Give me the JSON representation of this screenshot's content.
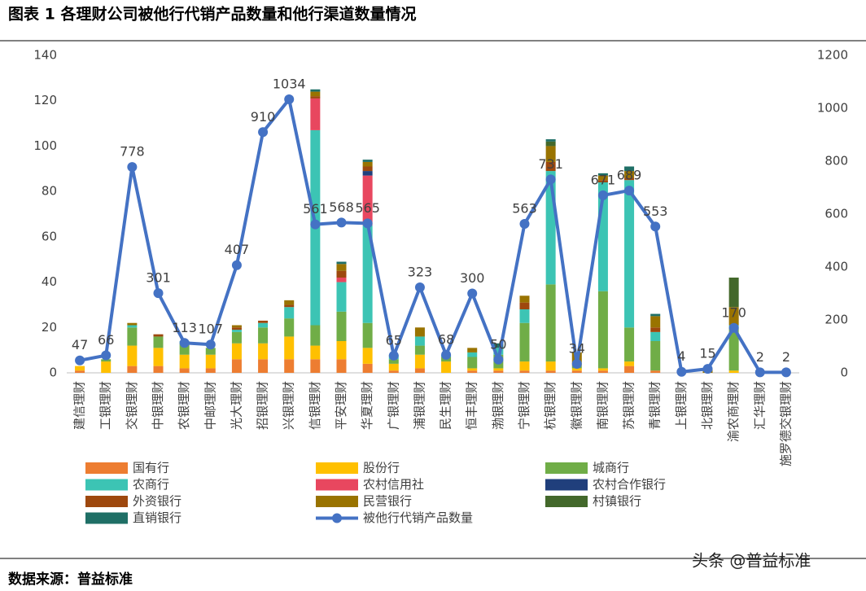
{
  "chart_data": {
    "type": "bar_line",
    "title": "图表 1  各理财公司被他行代销产品数量和他行渠道数量情况",
    "source": "数据来源：普益标准",
    "watermark": "头条 @普益标准",
    "categories": [
      "建信理财",
      "工银理财",
      "交银理财",
      "中银理财",
      "农银理财",
      "中邮理财",
      "光大理财",
      "招银理财",
      "兴银理财",
      "信银理财",
      "平安理财",
      "华夏理财",
      "广银理财",
      "浦银理财",
      "民生理财",
      "恒丰理财",
      "渤银理财",
      "宁银理财",
      "杭银理财",
      "徽银理财",
      "南银理财",
      "苏银理财",
      "青银理财",
      "上银理财",
      "北银理财",
      "渝农商理财",
      "汇华理财",
      "施罗德交银理财"
    ],
    "ylim": [
      0,
      140
    ],
    "yticks": [
      0,
      20,
      40,
      60,
      80,
      100,
      120,
      140
    ],
    "y2lim": [
      0,
      1200
    ],
    "y2ticks": [
      0,
      200,
      400,
      600,
      800,
      1000,
      1200
    ],
    "series": [
      {
        "name": "国有行",
        "color": "#ed7d31",
        "values": [
          1,
          0,
          3,
          3,
          2,
          2,
          6,
          6,
          6,
          6,
          6,
          4,
          1,
          2,
          0,
          1,
          1,
          1,
          1,
          1,
          1,
          3,
          1,
          0,
          0,
          0,
          0,
          0
        ]
      },
      {
        "name": "股份行",
        "color": "#ffc000",
        "values": [
          2,
          5,
          9,
          8,
          6,
          6,
          7,
          7,
          10,
          6,
          8,
          7,
          3,
          6,
          5,
          1,
          1,
          4,
          4,
          1,
          1,
          2,
          0,
          0,
          0,
          1,
          0,
          0
        ]
      },
      {
        "name": "城商行",
        "color": "#70ad47",
        "values": [
          0,
          1,
          8,
          5,
          5,
          3,
          5,
          7,
          8,
          9,
          13,
          11,
          2,
          4,
          2,
          5,
          6,
          17,
          34,
          1,
          34,
          15,
          13,
          0,
          0,
          19,
          0,
          0
        ]
      },
      {
        "name": "农商行",
        "color": "#3cc4b4",
        "values": [
          0,
          0,
          1,
          0,
          1,
          0,
          1,
          2,
          5,
          86,
          13,
          43,
          2,
          4,
          1,
          2,
          3,
          6,
          50,
          0,
          48,
          65,
          4,
          0,
          0,
          1,
          0,
          0
        ]
      },
      {
        "name": "农村信用社",
        "color": "#e8475f",
        "values": [
          0,
          0,
          0,
          0,
          0,
          0,
          0,
          0,
          0,
          14,
          2,
          22,
          0,
          0,
          0,
          0,
          0,
          0,
          0,
          0,
          0,
          0,
          0,
          0,
          0,
          0,
          0,
          0
        ]
      },
      {
        "name": "农村合作银行",
        "color": "#203f7c",
        "values": [
          0,
          0,
          0,
          0,
          0,
          0,
          0,
          0,
          0,
          0,
          0,
          2,
          0,
          0,
          0,
          0,
          0,
          0,
          0,
          0,
          0,
          0,
          0,
          0,
          0,
          0,
          0,
          0
        ]
      },
      {
        "name": "外资银行",
        "color": "#9e480e",
        "values": [
          0,
          0,
          0,
          1,
          0,
          0,
          1,
          1,
          1,
          1,
          3,
          2,
          0,
          0,
          0,
          0,
          0,
          3,
          4,
          0,
          1,
          1,
          2,
          0,
          0,
          0,
          0,
          0
        ]
      },
      {
        "name": "民营银行",
        "color": "#997300",
        "values": [
          0,
          0,
          1,
          0,
          0,
          0,
          1,
          0,
          2,
          2,
          3,
          2,
          0,
          4,
          0,
          2,
          0,
          3,
          7,
          6,
          2,
          3,
          5,
          0,
          2,
          8,
          0,
          0
        ]
      },
      {
        "name": "村镇银行",
        "color": "#43682b",
        "values": [
          0,
          0,
          0,
          0,
          0,
          0,
          0,
          0,
          0,
          0,
          0,
          0,
          0,
          0,
          0,
          0,
          0,
          0,
          2,
          0,
          0,
          0,
          0,
          0,
          0,
          13,
          0,
          0
        ]
      },
      {
        "name": "直销银行",
        "color": "#1f6f66",
        "values": [
          0,
          0,
          0,
          0,
          0,
          0,
          0,
          0,
          0,
          1,
          1,
          1,
          0,
          0,
          0,
          0,
          2,
          0,
          1,
          0,
          1,
          2,
          1,
          0,
          0,
          0,
          0,
          0
        ]
      },
      {
        "name": "被他行代销产品数量",
        "color": "#4472c4",
        "axis": "y2",
        "values": [
          47,
          66,
          778,
          301,
          113,
          107,
          407,
          910,
          1034,
          561,
          568,
          565,
          65,
          323,
          68,
          300,
          50,
          563,
          731,
          34,
          671,
          689,
          553,
          4,
          15,
          170,
          2,
          2
        ]
      }
    ]
  }
}
